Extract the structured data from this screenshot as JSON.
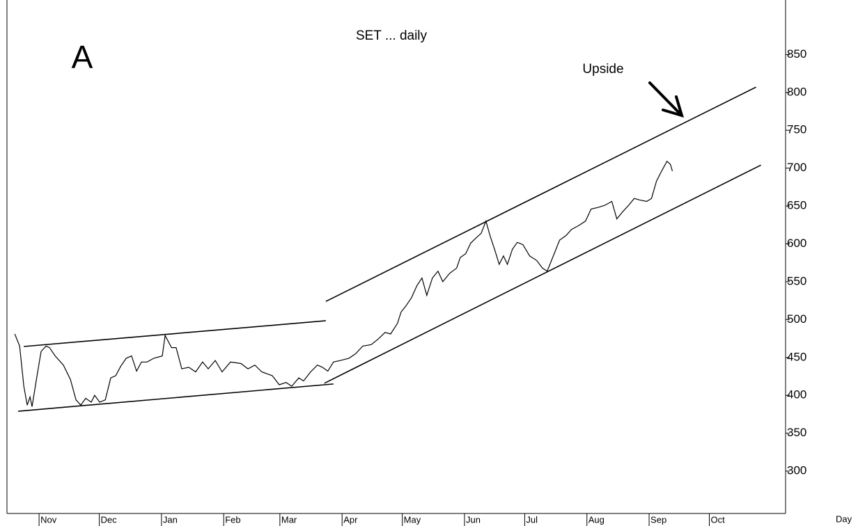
{
  "chart_data": {
    "type": "line",
    "title": "SET ... daily",
    "panel_label": "A",
    "annotation": "Upside",
    "xlabel": "Day",
    "xlim": [
      -16,
      372
    ],
    "xticks": [
      {
        "value": 0,
        "label": "Nov"
      },
      {
        "value": 30,
        "label": "Dec"
      },
      {
        "value": 61,
        "label": "Jan"
      },
      {
        "value": 92,
        "label": "Feb"
      },
      {
        "value": 120,
        "label": "Mar"
      },
      {
        "value": 151,
        "label": "Apr"
      },
      {
        "value": 181,
        "label": "May"
      },
      {
        "value": 212,
        "label": "Jun"
      },
      {
        "value": 242,
        "label": "Jul"
      },
      {
        "value": 273,
        "label": "Aug"
      },
      {
        "value": 304,
        "label": "Sep"
      },
      {
        "value": 334,
        "label": "Oct"
      }
    ],
    "ylim": [
      244,
      922
    ],
    "yticks": [
      300,
      350,
      400,
      450,
      500,
      550,
      600,
      650,
      700,
      750,
      800,
      850
    ],
    "color": "#000000",
    "x": [
      -12.1,
      -9.7,
      -7.6,
      -5.9,
      -4.5,
      -3.5,
      -1,
      1,
      3.5,
      5.2,
      8,
      12.1,
      15.6,
      18.4,
      20.8,
      23.2,
      26,
      27.7,
      30.2,
      33,
      35.7,
      38.2,
      40.6,
      43.4,
      46.1,
      48.6,
      51,
      53.8,
      57.2,
      61.4,
      62.8,
      66,
      68.3,
      71.1,
      74.6,
      78,
      81.5,
      84.3,
      87.8,
      91.2,
      95.4,
      100.6,
      104.1,
      107.5,
      111,
      116.2,
      119.7,
      123.1,
      125.9,
      129.4,
      131.8,
      135.3,
      138.7,
      141.2,
      143.9,
      146.7,
      150.2,
      154.4,
      157.8,
      161.3,
      165.5,
      168.9,
      172.4,
      175.2,
      178.6,
      180.4,
      182.8,
      185.6,
      188.3,
      190.8,
      193.2,
      196,
      198.8,
      201.2,
      204.6,
      208.1,
      209.9,
      212.6,
      215.1,
      217.8,
      220.3,
      222.7,
      224.8,
      227.2,
      229.3,
      231.4,
      233.4,
      235.9,
      238.3,
      241.1,
      244.5,
      248,
      250.8,
      253.2,
      256.7,
      259.4,
      262.6,
      265.3,
      268.8,
      272.3,
      275.1,
      278.5,
      282,
      285.4,
      287.9,
      290.7,
      293.8,
      296.6,
      299.3,
      302.8,
      305.2,
      307.7,
      310.4,
      312.9,
      314.6,
      315.6
    ],
    "values": [
      481,
      465,
      412,
      387,
      398,
      385,
      426,
      458,
      465,
      463,
      452,
      440,
      421,
      394,
      387,
      396,
      391,
      400,
      391,
      394,
      423,
      426,
      438,
      449,
      452,
      432,
      444,
      444,
      449,
      452,
      479,
      463,
      463,
      435,
      437,
      431,
      444,
      435,
      446,
      431,
      444,
      442,
      435,
      440,
      431,
      426,
      414,
      417,
      412,
      423,
      419,
      431,
      440,
      437,
      432,
      444,
      446,
      449,
      455,
      465,
      467,
      474,
      483,
      481,
      495,
      510,
      518,
      529,
      545,
      555,
      532,
      555,
      564,
      550,
      561,
      568,
      582,
      587,
      601,
      608,
      614,
      630,
      610,
      591,
      573,
      584,
      573,
      593,
      602,
      599,
      584,
      578,
      568,
      564,
      587,
      605,
      611,
      619,
      624,
      630,
      646,
      648,
      651,
      656,
      633,
      642,
      651,
      660,
      658,
      656,
      660,
      683,
      697,
      709,
      705,
      696
    ],
    "trendlines": [
      {
        "x": [
          -7.6,
          142.9
        ],
        "values": [
          464.5,
          498.5
        ]
      },
      {
        "x": [
          -10.4,
          146.7
        ],
        "values": [
          379,
          415
        ]
      },
      {
        "x": [
          142.9,
          357.3
        ],
        "values": [
          524,
          807
        ]
      },
      {
        "x": [
          142.2,
          359.7
        ],
        "values": [
          416,
          704
        ]
      }
    ]
  }
}
